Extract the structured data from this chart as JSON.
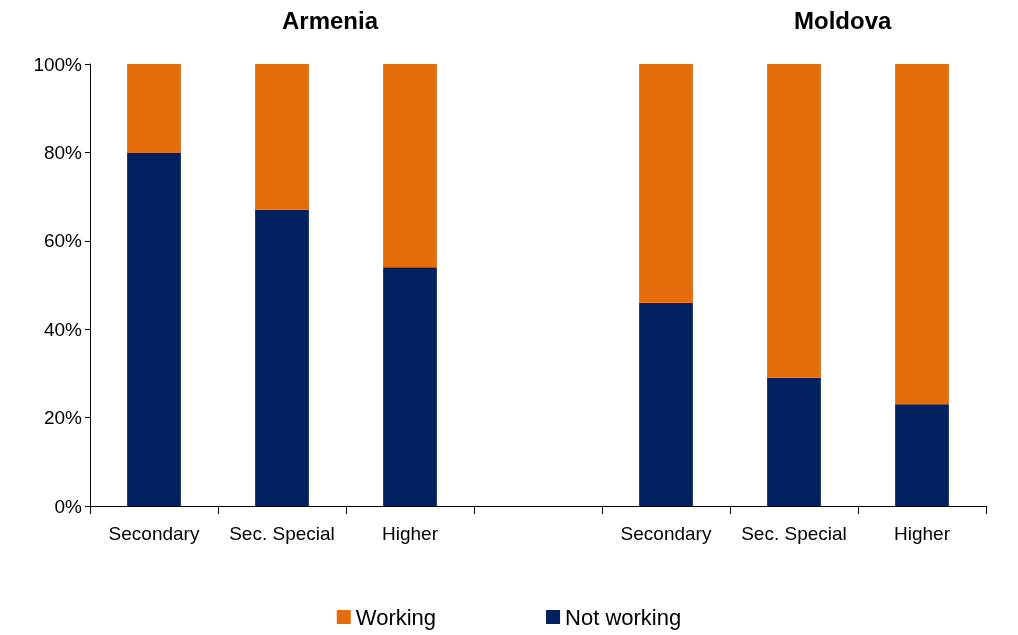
{
  "chart_data": {
    "type": "bar",
    "stacked": true,
    "categories": [
      "Secondary",
      "Sec. Special",
      "Higher",
      null,
      "Secondary",
      "Sec. Special",
      "Higher"
    ],
    "series": [
      {
        "name": "Not working",
        "color": "#002060",
        "values": [
          80,
          67,
          54,
          null,
          46,
          29,
          23
        ]
      },
      {
        "name": "Working",
        "color": "#e46c0a",
        "values": [
          20,
          33,
          46,
          null,
          54,
          71,
          77
        ]
      }
    ],
    "ylim": [
      0,
      100
    ],
    "yticks": [
      {
        "value": 0,
        "label": "0%"
      },
      {
        "value": 20,
        "label": "20%"
      },
      {
        "value": 40,
        "label": "40%"
      },
      {
        "value": 60,
        "label": "60%"
      },
      {
        "value": 80,
        "label": "80%"
      },
      {
        "value": 100,
        "label": "100%"
      }
    ],
    "annotations": [
      "Armenia",
      "Moldova"
    ],
    "grid": false,
    "legend": "bottom"
  }
}
